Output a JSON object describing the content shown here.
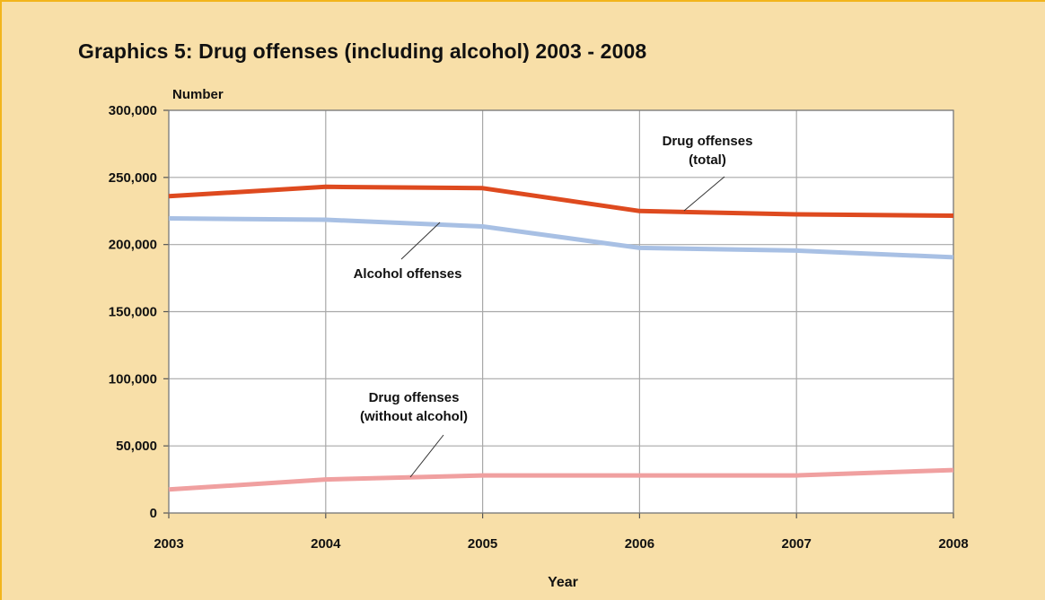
{
  "title": "Graphics 5:  Drug offenses (including alcohol) 2003 - 2008",
  "colors": {
    "background": "#f8dfa8",
    "plot_background": "#ffffff",
    "grid": "#a8a8a8",
    "drug_total": "#de4a1f",
    "alcohol": "#a8c0e4",
    "drug_without_alcohol": "#f0a0a0"
  },
  "chart_data": {
    "type": "line",
    "x": [
      "2003",
      "2004",
      "2005",
      "2006",
      "2007",
      "2008"
    ],
    "xlabel": "Year",
    "ylabel": "Number",
    "ylim": [
      0,
      300000
    ],
    "yticks": [
      0,
      50000,
      100000,
      150000,
      200000,
      250000,
      300000
    ],
    "ytick_labels": [
      "0",
      "50,000",
      "100,000",
      "150,000",
      "200,000",
      "250,000",
      "300,000"
    ],
    "grid": true,
    "series": [
      {
        "key": "drug_total",
        "values": [
          236000,
          243000,
          242000,
          225000,
          222500,
          221500
        ]
      },
      {
        "key": "alcohol",
        "values": [
          219500,
          218500,
          213500,
          197500,
          195500,
          190500
        ]
      },
      {
        "key": "drug_without_alcohol",
        "values": [
          17500,
          25000,
          28000,
          28000,
          28000,
          32000
        ]
      }
    ],
    "annotations": [
      {
        "key": "drug_total",
        "lines": [
          "Drug offenses",
          "(total)"
        ]
      },
      {
        "key": "alcohol",
        "lines": [
          "Alcohol offenses"
        ]
      },
      {
        "key": "drug_without_alcohol",
        "lines": [
          "Drug offenses",
          "(without alcohol)"
        ]
      }
    ]
  }
}
